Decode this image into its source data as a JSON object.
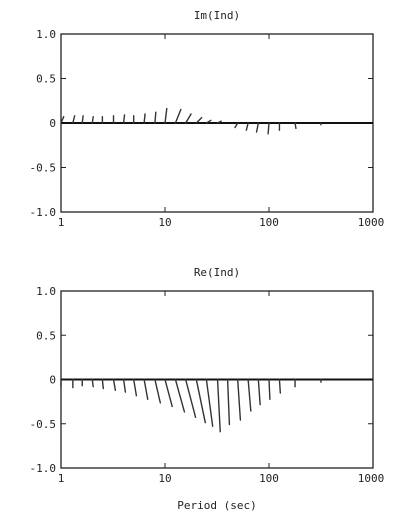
{
  "chart_data": [
    {
      "type": "vector",
      "title": "Im(Ind)",
      "xlabel": "",
      "ylabel": "",
      "xscale": "log",
      "xlim": [
        1,
        1000
      ],
      "ylim": [
        -1.0,
        1.0
      ],
      "xticks": [
        1,
        10,
        100,
        1000
      ],
      "xtick_labels": [
        "1",
        "10",
        "100",
        "1000"
      ],
      "yticks": [
        1.0,
        0.5,
        0,
        -0.5,
        -1.0
      ],
      "ytick_labels": [
        "1.0",
        "0.5",
        "0",
        "-0.5",
        "-1.0"
      ],
      "grid": false,
      "zero_line": true,
      "vectors": [
        {
          "period": 1.0,
          "u": 0.03,
          "v": 0.07
        },
        {
          "period": 1.3,
          "u": 0.02,
          "v": 0.08
        },
        {
          "period": 1.6,
          "u": 0.01,
          "v": 0.08
        },
        {
          "period": 2.0,
          "u": 0.01,
          "v": 0.07
        },
        {
          "period": 2.5,
          "u": 0.0,
          "v": 0.07
        },
        {
          "period": 3.2,
          "u": 0.0,
          "v": 0.08
        },
        {
          "period": 4.0,
          "u": 0.01,
          "v": 0.09
        },
        {
          "period": 5.0,
          "u": 0.0,
          "v": 0.08
        },
        {
          "period": 6.3,
          "u": 0.01,
          "v": 0.1
        },
        {
          "period": 8.0,
          "u": 0.01,
          "v": 0.12
        },
        {
          "period": 10.0,
          "u": 0.02,
          "v": 0.16
        },
        {
          "period": 12.6,
          "u": 0.06,
          "v": 0.15
        },
        {
          "period": 15.8,
          "u": 0.06,
          "v": 0.1
        },
        {
          "period": 20.0,
          "u": 0.06,
          "v": 0.06
        },
        {
          "period": 25.0,
          "u": 0.05,
          "v": 0.03
        },
        {
          "period": 32.0,
          "u": 0.04,
          "v": 0.02
        },
        {
          "period": 50.0,
          "u": -0.03,
          "v": -0.05
        },
        {
          "period": 63.0,
          "u": -0.02,
          "v": -0.08
        },
        {
          "period": 79.0,
          "u": -0.02,
          "v": -0.1
        },
        {
          "period": 100.0,
          "u": -0.01,
          "v": -0.12
        },
        {
          "period": 126.0,
          "u": 0.0,
          "v": -0.08
        },
        {
          "period": 178.0,
          "u": 0.01,
          "v": -0.06
        },
        {
          "period": 316.0,
          "u": 0.0,
          "v": -0.02
        }
      ]
    },
    {
      "type": "vector",
      "title": "Re(Ind)",
      "xlabel": "Period (sec)",
      "ylabel": "",
      "xscale": "log",
      "xlim": [
        1,
        1000
      ],
      "ylim": [
        -1.0,
        1.0
      ],
      "xticks": [
        1,
        10,
        100,
        1000
      ],
      "xtick_labels": [
        "1",
        "10",
        "100",
        "1000"
      ],
      "yticks": [
        1.0,
        0.5,
        0,
        -0.5,
        -1.0
      ],
      "ytick_labels": [
        "1.0",
        "0.5",
        "0",
        "-0.5",
        "-1.0"
      ],
      "grid": false,
      "zero_line": true,
      "vectors": [
        {
          "period": 1.0,
          "u": 0.0,
          "v": -0.08
        },
        {
          "period": 1.3,
          "u": 0.0,
          "v": -0.09
        },
        {
          "period": 1.6,
          "u": 0.0,
          "v": -0.07
        },
        {
          "period": 2.0,
          "u": 0.01,
          "v": -0.08
        },
        {
          "period": 2.5,
          "u": 0.01,
          "v": -0.1
        },
        {
          "period": 3.2,
          "u": 0.02,
          "v": -0.12
        },
        {
          "period": 4.0,
          "u": 0.02,
          "v": -0.14
        },
        {
          "period": 5.0,
          "u": 0.03,
          "v": -0.18
        },
        {
          "period": 6.3,
          "u": 0.04,
          "v": -0.22
        },
        {
          "period": 8.0,
          "u": 0.06,
          "v": -0.26
        },
        {
          "period": 10.0,
          "u": 0.08,
          "v": -0.3
        },
        {
          "period": 12.6,
          "u": 0.1,
          "v": -0.36
        },
        {
          "period": 15.8,
          "u": 0.11,
          "v": -0.42
        },
        {
          "period": 20.0,
          "u": 0.1,
          "v": -0.48
        },
        {
          "period": 25.0,
          "u": 0.07,
          "v": -0.52
        },
        {
          "period": 32.0,
          "u": 0.03,
          "v": -0.58
        },
        {
          "period": 40.0,
          "u": 0.02,
          "v": -0.5
        },
        {
          "period": 50.0,
          "u": 0.03,
          "v": -0.45
        },
        {
          "period": 63.0,
          "u": 0.03,
          "v": -0.35
        },
        {
          "period": 79.0,
          "u": 0.02,
          "v": -0.28
        },
        {
          "period": 100.0,
          "u": 0.01,
          "v": -0.22
        },
        {
          "period": 126.0,
          "u": 0.01,
          "v": -0.15
        },
        {
          "period": 178.0,
          "u": 0.0,
          "v": -0.08
        },
        {
          "period": 316.0,
          "u": 0.0,
          "v": -0.03
        }
      ]
    }
  ]
}
